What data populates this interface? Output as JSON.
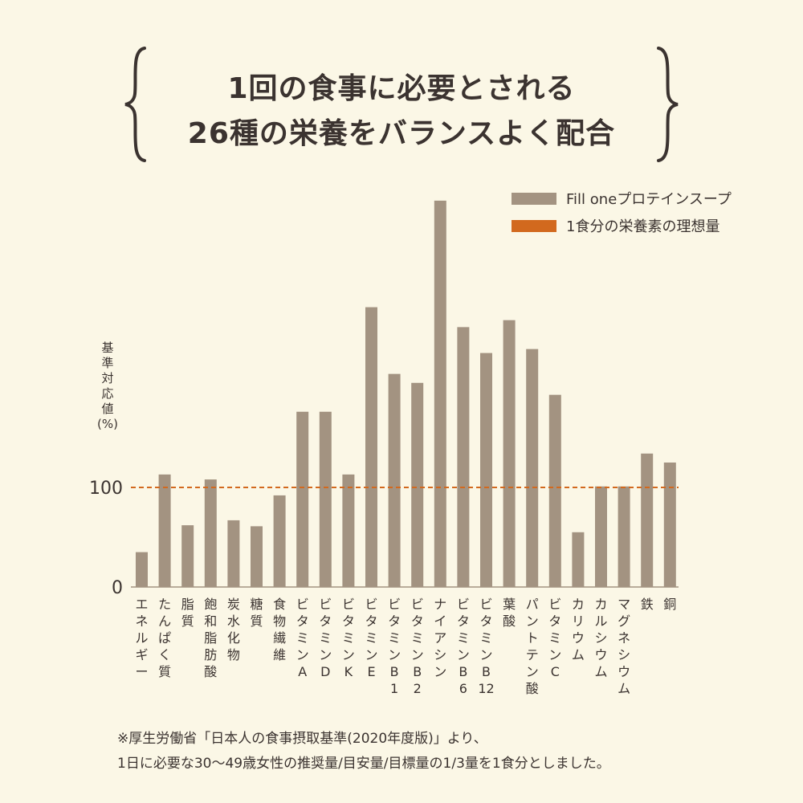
{
  "header": {
    "title_line1": "1回の食事に必要とされる",
    "title_line2": "26種の栄養をバランスよく配合"
  },
  "legend": {
    "product_label": "Fill oneプロテインスープ",
    "ideal_label": "1食分の栄養素の理想量"
  },
  "colors": {
    "background": "#fbf7e6",
    "bar": "#a39381",
    "reference_line": "#d2691e",
    "text": "#3b3330"
  },
  "footnote": {
    "line1": "※厚生労働省「日本人の食事摂取基準(2020年度版)」より、",
    "line2": "1日に必要な30〜49歳女性の推奨量/目安量/目標量の1/3量を1食分としました。"
  },
  "chart_data": {
    "type": "bar",
    "ylabel": "基準対応値(%)",
    "yticks": [
      0,
      100
    ],
    "ylim": [
      0,
      390
    ],
    "reference_line": 100,
    "categories": [
      "エネルギー",
      "たんぱく質",
      "脂質",
      "飽和脂肪酸",
      "炭水化物",
      "糖質",
      "食物繊維",
      "ビタミンA",
      "ビタミンD",
      "ビタミンK",
      "ビタミンE",
      "ビタミンB1",
      "ビタミンB2",
      "ナイアシン",
      "ビタミンB6",
      "ビタミンB12",
      "葉酸",
      "パントテン酸",
      "ビタミンC",
      "カリウム",
      "カルシウム",
      "マグネシウム",
      "鉄",
      "銅"
    ],
    "category_lines": [
      [
        "エ",
        "ネ",
        "ル",
        "ギ",
        "ー"
      ],
      [
        "た",
        "ん",
        "ぱ",
        "く",
        "質"
      ],
      [
        "脂",
        "質"
      ],
      [
        "飽",
        "和",
        "脂",
        "肪",
        "酸"
      ],
      [
        "炭",
        "水",
        "化",
        "物"
      ],
      [
        "糖",
        "質"
      ],
      [
        "食",
        "物",
        "繊",
        "維"
      ],
      [
        "ビ",
        "タ",
        "ミ",
        "ン",
        "A"
      ],
      [
        "ビ",
        "タ",
        "ミ",
        "ン",
        "D"
      ],
      [
        "ビ",
        "タ",
        "ミ",
        "ン",
        "K"
      ],
      [
        "ビ",
        "タ",
        "ミ",
        "ン",
        "E"
      ],
      [
        "ビ",
        "タ",
        "ミ",
        "ン",
        "B",
        "1"
      ],
      [
        "ビ",
        "タ",
        "ミ",
        "ン",
        "B",
        "2"
      ],
      [
        "ナ",
        "イ",
        "ア",
        "シ",
        "ン"
      ],
      [
        "ビ",
        "タ",
        "ミ",
        "ン",
        "B",
        "6"
      ],
      [
        "ビ",
        "タ",
        "ミ",
        "ン",
        "B",
        "12"
      ],
      [
        "葉",
        "酸"
      ],
      [
        "パ",
        "ン",
        "ト",
        "テ",
        "ン",
        "酸"
      ],
      [
        "ビ",
        "タ",
        "ミ",
        "ン",
        "C"
      ],
      [
        "カ",
        "リ",
        "ウ",
        "ム"
      ],
      [
        "カ",
        "ル",
        "シ",
        "ウ",
        "ム"
      ],
      [
        "マ",
        "グ",
        "ネ",
        "シ",
        "ウ",
        "ム"
      ],
      [
        "鉄"
      ],
      [
        "銅"
      ]
    ],
    "values": [
      35,
      113,
      62,
      108,
      67,
      61,
      92,
      176,
      176,
      113,
      281,
      214,
      205,
      388,
      261,
      235,
      268,
      239,
      193,
      55,
      101,
      101,
      134,
      125
    ],
    "series": [
      {
        "name": "Fill oneプロテインスープ",
        "values": [
          35,
          113,
          62,
          108,
          67,
          61,
          92,
          176,
          176,
          113,
          281,
          214,
          205,
          388,
          261,
          235,
          268,
          239,
          193,
          55,
          101,
          101,
          134,
          125
        ]
      }
    ],
    "grid": false,
    "legend_position": "top-right"
  }
}
